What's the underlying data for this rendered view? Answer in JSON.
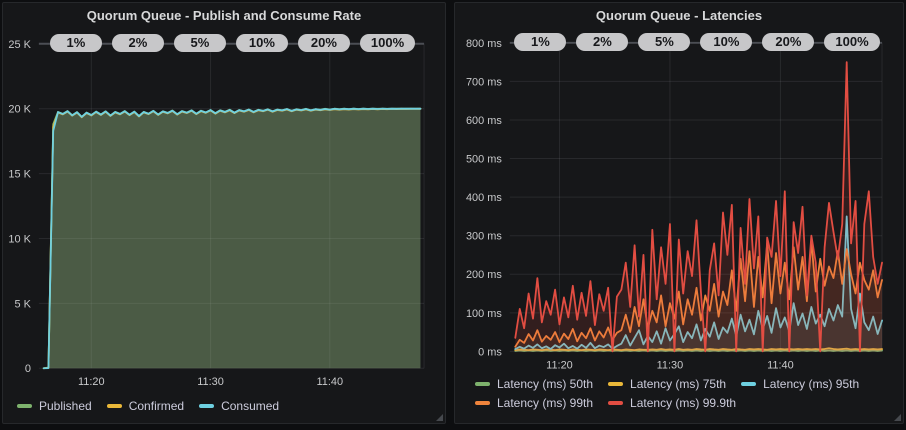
{
  "app": {
    "background": "#0d0e10",
    "panel_background": "#161719",
    "panel_border": "#26282b",
    "text_color": "#d8d9da",
    "annotation_pill_bg": "#c7c7c9",
    "annotation_pill_text": "#17181b"
  },
  "annotations": {
    "labels": [
      "1%",
      "2%",
      "5%",
      "10%",
      "20%",
      "100%"
    ]
  },
  "chart_data": [
    {
      "type": "area",
      "title": "Quorum Queue - Publish and Consume Rate",
      "xlabel": "",
      "ylabel": "",
      "grid": true,
      "legend_position": "bottom-left",
      "ylim": [
        0,
        25000
      ],
      "y_ticks": [
        {
          "v": 0,
          "label": "0"
        },
        {
          "v": 5000,
          "label": "5 K"
        },
        {
          "v": 10000,
          "label": "10 K"
        },
        {
          "v": 15000,
          "label": "15 K"
        },
        {
          "v": 20000,
          "label": "20 K"
        },
        {
          "v": 25000,
          "label": "25 K"
        }
      ],
      "x_ticks": [
        {
          "t": 4,
          "label": "11:20"
        },
        {
          "t": 14,
          "label": "11:30"
        },
        {
          "t": 24,
          "label": "11:40"
        }
      ],
      "t_domain": [
        -0.4,
        31.9
      ],
      "t0": 0,
      "dt": 0.4,
      "legend_rows": [
        [
          0,
          1,
          2
        ]
      ],
      "series": [
        {
          "name": "Published",
          "color": "#7eb26d",
          "fill": "rgba(126,178,109,0.16)",
          "values": [
            0,
            50,
            18800,
            19750,
            19600,
            19820,
            19500,
            19740,
            19380,
            19700,
            19520,
            19780,
            19560,
            19800,
            19480,
            19760,
            19600,
            19820,
            19540,
            19780,
            19440,
            19760,
            19620,
            19840,
            19560,
            19800,
            19680,
            19860,
            19580,
            19820,
            19700,
            19880,
            19620,
            19850,
            19720,
            19900,
            19660,
            19880,
            19760,
            19920,
            19700,
            19900,
            19800,
            19940,
            19760,
            19920,
            19840,
            19960,
            19800,
            19940,
            19880,
            19980,
            19840,
            19960,
            19900,
            19990,
            19880,
            19970,
            19920,
            19990,
            19940,
            20000,
            19960,
            20000,
            19970,
            20000,
            19980,
            20000,
            19985,
            20000,
            19990,
            20000,
            19995,
            20000,
            20000,
            20000,
            20000,
            20000,
            20000,
            20000
          ]
        },
        {
          "name": "Confirmed",
          "color": "#eab839",
          "fill": "rgba(234,184,57,0.16)",
          "values": [
            0,
            30,
            18600,
            19710,
            19560,
            19780,
            19460,
            19700,
            19340,
            19660,
            19480,
            19740,
            19520,
            19760,
            19440,
            19720,
            19560,
            19780,
            19500,
            19740,
            19400,
            19720,
            19580,
            19800,
            19520,
            19760,
            19640,
            19820,
            19540,
            19780,
            19660,
            19840,
            19580,
            19810,
            19680,
            19860,
            19620,
            19840,
            19720,
            19880,
            19660,
            19860,
            19760,
            19900,
            19720,
            19880,
            19800,
            19920,
            19760,
            19900,
            19840,
            19940,
            19800,
            19920,
            19860,
            19950,
            19840,
            19930,
            19880,
            19950,
            19900,
            19960,
            19920,
            19960,
            19930,
            19970,
            19940,
            19970,
            19950,
            19980,
            19950,
            19980,
            19960,
            19985,
            19970,
            19990,
            19980,
            19990,
            19985,
            19990
          ]
        },
        {
          "name": "Consumed",
          "color": "#6ed0e0",
          "fill": "rgba(110,208,224,0.16)",
          "values": [
            0,
            10,
            18300,
            19740,
            19590,
            19810,
            19490,
            19730,
            19370,
            19690,
            19510,
            19770,
            19550,
            19790,
            19470,
            19750,
            19590,
            19810,
            19530,
            19770,
            19430,
            19750,
            19610,
            19830,
            19550,
            19790,
            19670,
            19850,
            19570,
            19810,
            19690,
            19870,
            19610,
            19840,
            19710,
            19890,
            19650,
            19870,
            19750,
            19910,
            19690,
            19890,
            19790,
            19930,
            19750,
            19910,
            19830,
            19950,
            19790,
            19930,
            19870,
            19970,
            19830,
            19950,
            19890,
            19980,
            19870,
            19960,
            19910,
            19980,
            19930,
            19990,
            19950,
            19990,
            19960,
            20000,
            19970,
            20000,
            19975,
            20000,
            19980,
            20000,
            19985,
            20000,
            19990,
            20000,
            20000,
            20000,
            20000,
            20000
          ]
        }
      ]
    },
    {
      "type": "line",
      "title": "Quorum Queue - Latencies",
      "xlabel": "",
      "ylabel": "",
      "grid": true,
      "legend_position": "bottom-left",
      "ylim": [
        0,
        800
      ],
      "y_ticks": [
        {
          "v": 0,
          "label": "0 ms"
        },
        {
          "v": 100,
          "label": "100 ms"
        },
        {
          "v": 200,
          "label": "200 ms"
        },
        {
          "v": 300,
          "label": "300 ms"
        },
        {
          "v": 400,
          "label": "400 ms"
        },
        {
          "v": 500,
          "label": "500 ms"
        },
        {
          "v": 600,
          "label": "600 ms"
        },
        {
          "v": 700,
          "label": "700 ms"
        },
        {
          "v": 800,
          "label": "800 ms"
        }
      ],
      "x_ticks": [
        {
          "t": 4,
          "label": "11:20"
        },
        {
          "t": 14,
          "label": "11:30"
        },
        {
          "t": 24,
          "label": "11:40"
        }
      ],
      "t_domain": [
        -0.5,
        33.2
      ],
      "t0": 0,
      "dt": 0.4,
      "legend_rows": [
        [
          0,
          1,
          2
        ],
        [
          3,
          4
        ]
      ],
      "series": [
        {
          "name": "Latency (ms) 50th",
          "color": "#7eb26d",
          "fill": "rgba(126,178,109,0.08)",
          "values": [
            1,
            2,
            1,
            2,
            1,
            2,
            1,
            2,
            1,
            2,
            1,
            2,
            1,
            2,
            1,
            2,
            1,
            2,
            1,
            2,
            1,
            2,
            1,
            2,
            1,
            2,
            1,
            2,
            1,
            2,
            1,
            2,
            1,
            2,
            1,
            2,
            1,
            2,
            1,
            2,
            1,
            2,
            1,
            2,
            1,
            2,
            1,
            2,
            1,
            2,
            1,
            2,
            1,
            2,
            1,
            2,
            1,
            2,
            1,
            2,
            1,
            2,
            1,
            2,
            1,
            2,
            1,
            2,
            1,
            2,
            1,
            2,
            1,
            2,
            1,
            2,
            1,
            2,
            1,
            2,
            1,
            2,
            1,
            2
          ]
        },
        {
          "name": "Latency (ms) 75th",
          "color": "#eab839",
          "fill": "rgba(234,184,57,0.08)",
          "values": [
            3,
            5,
            4,
            3,
            5,
            4,
            3,
            5,
            4,
            3,
            5,
            4,
            3,
            5,
            4,
            3,
            5,
            4,
            3,
            5,
            4,
            3,
            5,
            4,
            3,
            5,
            4,
            3,
            5,
            4,
            4,
            5,
            4,
            6,
            4,
            5,
            4,
            6,
            4,
            5,
            4,
            6,
            5,
            4,
            6,
            5,
            4,
            6,
            5,
            4,
            6,
            5,
            4,
            6,
            5,
            6,
            5,
            4,
            6,
            5,
            6,
            5,
            6,
            5,
            6,
            5,
            6,
            5,
            6,
            5,
            6,
            8,
            6,
            5,
            6,
            7,
            5,
            6,
            5,
            6,
            5,
            6,
            5,
            6
          ]
        },
        {
          "name": "Latency (ms) 95th",
          "color": "#6ed0e0",
          "fill": "rgba(110,208,224,0.10)",
          "values": [
            6,
            12,
            7,
            15,
            9,
            18,
            8,
            13,
            6,
            16,
            10,
            20,
            8,
            14,
            7,
            17,
            9,
            22,
            8,
            15,
            11,
            18,
            7,
            14,
            20,
            42,
            15,
            35,
            55,
            18,
            40,
            24,
            52,
            20,
            60,
            28,
            45,
            65,
            24,
            50,
            34,
            70,
            28,
            58,
            38,
            75,
            32,
            62,
            48,
            85,
            40,
            95,
            52,
            82,
            44,
            105,
            58,
            92,
            48,
            112,
            62,
            88,
            52,
            125,
            68,
            98,
            58,
            115,
            72,
            95,
            65,
            110,
            80,
            120,
            90,
            350,
            110,
            60,
            150,
            75,
            55,
            90,
            45,
            80
          ]
        },
        {
          "name": "Latency (ms) 99th",
          "color": "#ef843c",
          "fill": "rgba(239,132,60,0.10)",
          "values": [
            12,
            30,
            22,
            45,
            28,
            55,
            25,
            40,
            30,
            50,
            24,
            46,
            32,
            58,
            26,
            48,
            34,
            60,
            28,
            52,
            36,
            62,
            30,
            48,
            55,
            95,
            50,
            115,
            65,
            135,
            60,
            105,
            75,
            145,
            65,
            125,
            85,
            155,
            70,
            135,
            95,
            165,
            80,
            145,
            105,
            175,
            90,
            155,
            120,
            210,
            105,
            240,
            130,
            260,
            115,
            245,
            140,
            280,
            125,
            255,
            150,
            230,
            135,
            270,
            160,
            245,
            130,
            285,
            155,
            240,
            170,
            220,
            190,
            260,
            175,
            265,
            200,
            150,
            230,
            185,
            160,
            210,
            140,
            185
          ]
        },
        {
          "name": "Latency (ms) 99.9th",
          "color": "#e24d42",
          "fill": "rgba(226,77,66,0.14)",
          "values": [
            35,
            110,
            60,
            150,
            85,
            190,
            75,
            130,
            95,
            160,
            70,
            140,
            88,
            170,
            82,
            152,
            92,
            182,
            68,
            148,
            105,
            165,
            0,
            142,
            160,
            230,
            115,
            275,
            90,
            250,
            0,
            315,
            135,
            270,
            175,
            330,
            0,
            290,
            150,
            260,
            195,
            340,
            155,
            0,
            210,
            280,
            145,
            360,
            250,
            380,
            0,
            320,
            175,
            395,
            215,
            350,
            0,
            295,
            245,
            390,
            195,
            415,
            0,
            335,
            255,
            375,
            145,
            300,
            230,
            0,
            270,
            385,
            310,
            240,
            330,
            750,
            280,
            390,
            0,
            330,
            415,
            245,
            175,
            230
          ]
        }
      ]
    }
  ]
}
